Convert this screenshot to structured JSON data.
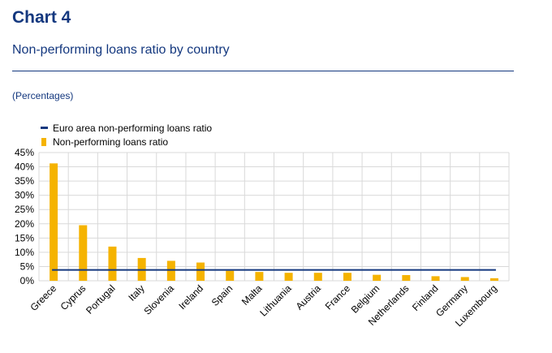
{
  "header": {
    "title": "Chart 4",
    "subtitle": "Non-performing loans ratio by country",
    "units": "(Percentages)"
  },
  "colors": {
    "bar": "#f5b300",
    "line": "#14387f",
    "grid": "#d9d9d9"
  },
  "chart_data": {
    "type": "bar",
    "categories": [
      "Greece",
      "Cyprus",
      "Portugal",
      "Italy",
      "Slovenia",
      "Ireland",
      "Spain",
      "Malta",
      "Lithuania",
      "Austria",
      "France",
      "Belgium",
      "Netherlands",
      "Finland",
      "Germany",
      "Luxembourg"
    ],
    "series": [
      {
        "name": "Non-performing loans ratio",
        "type": "bar",
        "values": [
          41.2,
          19.5,
          12.0,
          8.0,
          7.0,
          6.4,
          3.5,
          3.1,
          2.8,
          2.8,
          2.8,
          2.1,
          2.0,
          1.6,
          1.3,
          0.9
        ]
      },
      {
        "name": "Euro area non-performing loans ratio",
        "type": "line",
        "value": 3.8
      }
    ],
    "yticks": [
      "0%",
      "5%",
      "10%",
      "15%",
      "20%",
      "25%",
      "30%",
      "35%",
      "40%",
      "45%"
    ],
    "ylim": [
      0,
      45
    ],
    "grid": true,
    "legend": "top-left"
  }
}
